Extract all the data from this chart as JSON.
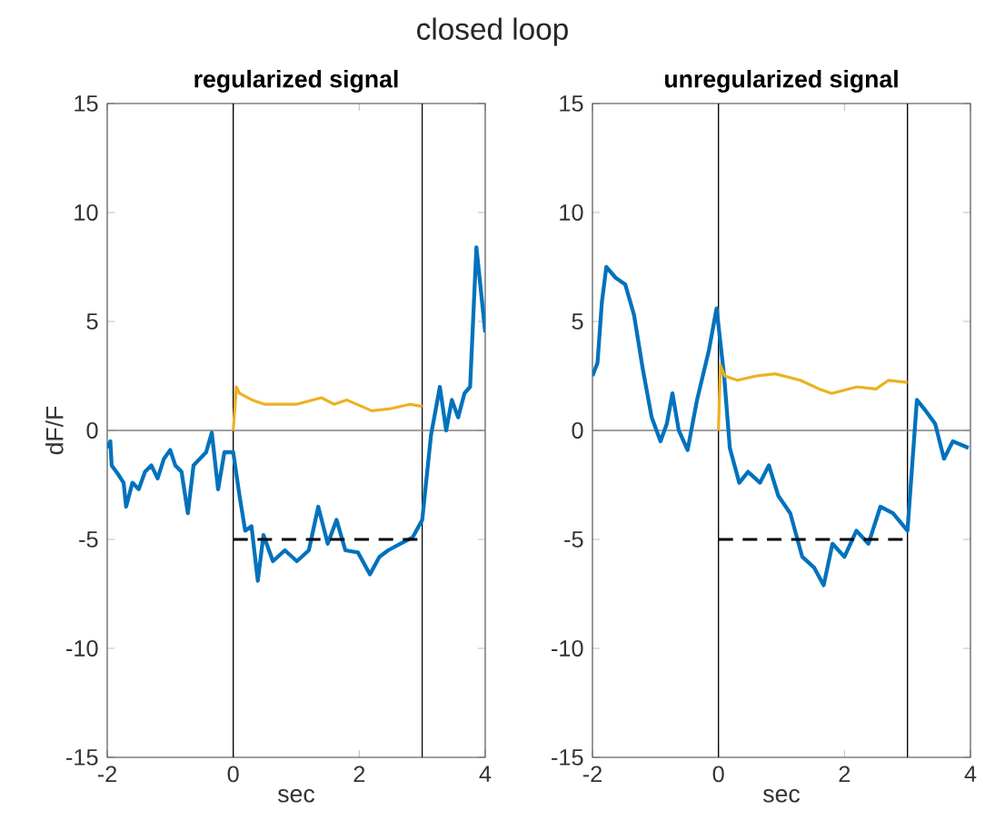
{
  "chart_data": [
    {
      "type": "line",
      "title": "regularized signal",
      "xlabel": "sec",
      "ylabel": "dF/F",
      "annotations": [
        "closed loop"
      ],
      "xlim": [
        -2,
        4
      ],
      "ylim": [
        -15,
        15
      ],
      "xticks": [
        -2,
        0,
        2,
        4
      ],
      "yticks": [
        -15,
        -10,
        -5,
        0,
        5,
        10,
        15
      ],
      "grid": false,
      "ref_lines": [
        {
          "axis": "x",
          "value": 0,
          "color": "#000000"
        },
        {
          "axis": "x",
          "value": 3,
          "color": "#000000"
        },
        {
          "axis": "y",
          "value": 0,
          "color": "#808080"
        }
      ],
      "series": [
        {
          "color": "#0072bd",
          "x": [
            -2.0,
            -1.95,
            -1.93,
            -1.83,
            -1.74,
            -1.7,
            -1.6,
            -1.5,
            -1.4,
            -1.3,
            -1.2,
            -1.1,
            -1.0,
            -0.92,
            -0.82,
            -0.72,
            -0.63,
            -0.53,
            -0.43,
            -0.34,
            -0.24,
            -0.14,
            0,
            0.1,
            0.19,
            0.29,
            0.39,
            0.48,
            0.63,
            0.82,
            1.01,
            1.2,
            1.35,
            1.5,
            1.64,
            1.78,
            1.98,
            2.17,
            2.32,
            2.46,
            2.65,
            2.85,
            3.0,
            3.14,
            3.28,
            3.38,
            3.47,
            3.57,
            3.67,
            3.76,
            3.86,
            4.0
          ],
          "values": [
            -0.8,
            -0.5,
            -1.6,
            -2.0,
            -2.4,
            -3.5,
            -2.4,
            -2.7,
            -1.9,
            -1.6,
            -2.2,
            -1.3,
            -0.9,
            -1.6,
            -1.9,
            -3.8,
            -1.6,
            -1.3,
            -1.0,
            -0.1,
            -2.7,
            -1.0,
            -1.0,
            -3.0,
            -4.6,
            -4.4,
            -6.9,
            -4.8,
            -6.0,
            -5.5,
            -6.0,
            -5.5,
            -3.5,
            -5.2,
            -4.1,
            -5.5,
            -5.6,
            -6.6,
            -5.8,
            -5.5,
            -5.2,
            -4.9,
            -4.1,
            -0.2,
            2.0,
            0.0,
            1.4,
            0.6,
            1.7,
            2.0,
            8.4,
            4.5
          ]
        },
        {
          "color": "#edb120",
          "x": [
            0,
            0.05,
            0.1,
            0.3,
            0.5,
            1.0,
            1.4,
            1.6,
            1.8,
            2.2,
            2.5,
            2.8,
            3.0
          ],
          "values": [
            0,
            2.0,
            1.7,
            1.4,
            1.2,
            1.2,
            1.5,
            1.2,
            1.4,
            0.9,
            1.0,
            1.2,
            1.1
          ]
        },
        {
          "color": "#000000",
          "line_style": "dashed",
          "x": [
            0,
            3
          ],
          "values": [
            -5,
            -5
          ]
        }
      ]
    },
    {
      "type": "line",
      "title": "unregularized signal",
      "xlabel": "sec",
      "xlim": [
        -2,
        4
      ],
      "ylim": [
        -15,
        15
      ],
      "xticks": [
        -2,
        0,
        2,
        4
      ],
      "yticks": [
        -15,
        -10,
        -5,
        0,
        5,
        10,
        15
      ],
      "grid": false,
      "ref_lines": [
        {
          "axis": "x",
          "value": 0,
          "color": "#000000"
        },
        {
          "axis": "x",
          "value": 3,
          "color": "#000000"
        },
        {
          "axis": "y",
          "value": 0,
          "color": "#808080"
        }
      ],
      "series": [
        {
          "color": "#0072bd",
          "x": [
            -2.0,
            -1.92,
            -1.85,
            -1.78,
            -1.63,
            -1.48,
            -1.34,
            -1.2,
            -1.06,
            -0.92,
            -0.82,
            -0.73,
            -0.63,
            -0.49,
            -0.34,
            -0.15,
            -0.03,
            0.09,
            0.18,
            0.33,
            0.47,
            0.66,
            0.8,
            0.95,
            1.14,
            1.33,
            1.52,
            1.67,
            1.81,
            2.0,
            2.19,
            2.38,
            2.57,
            2.77,
            3.0,
            3.15,
            3.29,
            3.44,
            3.58,
            3.72,
            3.97
          ],
          "values": [
            2.5,
            3.1,
            5.9,
            7.5,
            7.0,
            6.7,
            5.3,
            2.8,
            0.6,
            -0.5,
            0.3,
            1.7,
            0.0,
            -0.9,
            1.4,
            3.7,
            5.6,
            2.5,
            -0.8,
            -2.4,
            -1.9,
            -2.4,
            -1.6,
            -3.0,
            -3.8,
            -5.8,
            -6.3,
            -7.1,
            -5.2,
            -5.8,
            -4.6,
            -5.2,
            -3.5,
            -3.8,
            -4.6,
            1.4,
            0.9,
            0.3,
            -1.3,
            -0.5,
            -0.8
          ]
        },
        {
          "color": "#edb120",
          "x": [
            0,
            0.03,
            0.1,
            0.3,
            0.6,
            0.9,
            1.3,
            1.6,
            1.8,
            2.2,
            2.5,
            2.7,
            3.0
          ],
          "values": [
            0,
            3.0,
            2.5,
            2.3,
            2.5,
            2.6,
            2.3,
            1.9,
            1.7,
            2.0,
            1.9,
            2.3,
            2.2
          ]
        },
        {
          "color": "#000000",
          "line_style": "dashed",
          "x": [
            0,
            3
          ],
          "values": [
            -5,
            -5
          ]
        }
      ]
    }
  ]
}
